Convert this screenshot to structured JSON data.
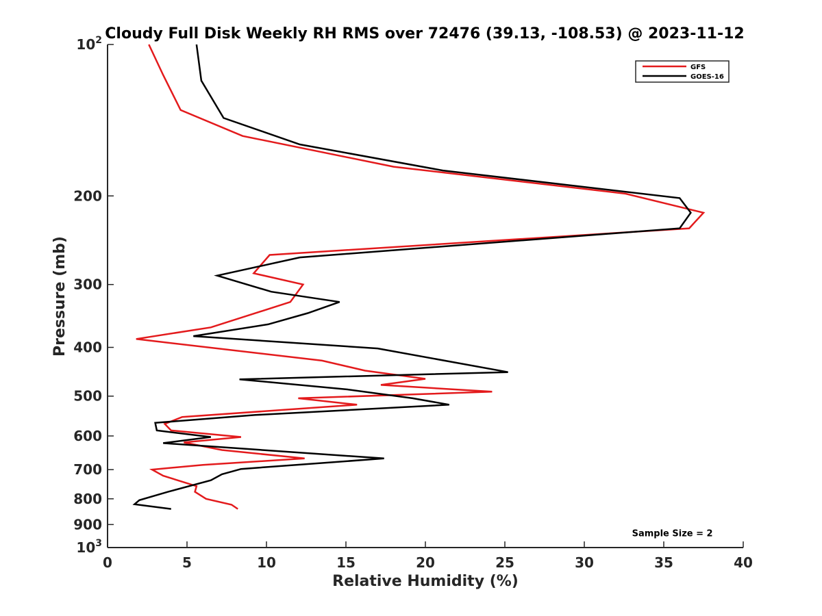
{
  "chart_data": {
    "type": "line",
    "title": "Cloudy Full Disk Weekly RH RMS over 72476 (39.13, -108.53) @ 2023-11-12",
    "xlabel": "Relative Humidity (%)",
    "ylabel": "Pressure (mb)",
    "xlim": [
      0,
      40
    ],
    "ylim": [
      100,
      1000
    ],
    "yscale": "log",
    "y_reversed": true,
    "grid": false,
    "legend_position": "top-right",
    "x_ticks": [
      0,
      5,
      10,
      15,
      20,
      25,
      30,
      35,
      40
    ],
    "y_ticks": [
      {
        "value": 100,
        "label": "10",
        "sup": "2"
      },
      {
        "value": 200,
        "label": "200",
        "sup": ""
      },
      {
        "value": 300,
        "label": "300",
        "sup": ""
      },
      {
        "value": 400,
        "label": "400",
        "sup": ""
      },
      {
        "value": 500,
        "label": "500",
        "sup": ""
      },
      {
        "value": 600,
        "label": "600",
        "sup": ""
      },
      {
        "value": 700,
        "label": "700",
        "sup": ""
      },
      {
        "value": 800,
        "label": "800",
        "sup": ""
      },
      {
        "value": 900,
        "label": "900",
        "sup": ""
      },
      {
        "value": 1000,
        "label": "10",
        "sup": "3"
      }
    ],
    "series": [
      {
        "name": "GFS",
        "color": "#e31a1c",
        "points": [
          [
            2.6,
            100
          ],
          [
            3.5,
            115
          ],
          [
            4.6,
            135
          ],
          [
            8.5,
            152
          ],
          [
            18,
            175
          ],
          [
            32.6,
            198
          ],
          [
            37.5,
            216
          ],
          [
            36.6,
            232
          ],
          [
            10.2,
            262
          ],
          [
            9.2,
            285
          ],
          [
            12.3,
            300
          ],
          [
            11.5,
            325
          ],
          [
            6.5,
            365
          ],
          [
            1.8,
            385
          ],
          [
            13.5,
            425
          ],
          [
            16.2,
            445
          ],
          [
            20,
            462
          ],
          [
            17.2,
            475
          ],
          [
            24.2,
            490
          ],
          [
            12,
            505
          ],
          [
            15.7,
            520
          ],
          [
            4.7,
            550
          ],
          [
            3.6,
            568
          ],
          [
            4,
            585
          ],
          [
            8.4,
            603
          ],
          [
            4.8,
            618
          ],
          [
            7.2,
            640
          ],
          [
            12.4,
            665
          ],
          [
            6,
            685
          ],
          [
            2.8,
            700
          ],
          [
            3.5,
            720
          ],
          [
            5.6,
            755
          ],
          [
            5.5,
            775
          ],
          [
            6.2,
            800
          ],
          [
            7.8,
            822
          ],
          [
            8.2,
            838
          ]
        ]
      },
      {
        "name": "GOES-16",
        "color": "#000000",
        "points": [
          [
            5.6,
            100
          ],
          [
            5.9,
            118
          ],
          [
            7.3,
            140
          ],
          [
            12.1,
            158
          ],
          [
            21.1,
            178
          ],
          [
            36,
            202
          ],
          [
            36.7,
            216
          ],
          [
            36,
            232
          ],
          [
            12.1,
            265
          ],
          [
            6.9,
            288
          ],
          [
            10.3,
            310
          ],
          [
            14.6,
            325
          ],
          [
            12.6,
            342
          ],
          [
            10.1,
            360
          ],
          [
            5.4,
            380
          ],
          [
            17,
            402
          ],
          [
            25.2,
            448
          ],
          [
            8.3,
            463
          ],
          [
            15.1,
            485
          ],
          [
            19.2,
            505
          ],
          [
            21.5,
            520
          ],
          [
            9.3,
            545
          ],
          [
            3,
            565
          ],
          [
            3.1,
            585
          ],
          [
            6.5,
            603
          ],
          [
            3.5,
            620
          ],
          [
            17.4,
            665
          ],
          [
            8.4,
            698
          ],
          [
            7.2,
            715
          ],
          [
            6.5,
            735
          ],
          [
            3.8,
            775
          ],
          [
            2,
            805
          ],
          [
            1.7,
            820
          ],
          [
            4,
            838
          ]
        ]
      }
    ],
    "annotations": [
      {
        "text": "Sample Size = 2",
        "x": 33,
        "y": 935
      }
    ]
  }
}
